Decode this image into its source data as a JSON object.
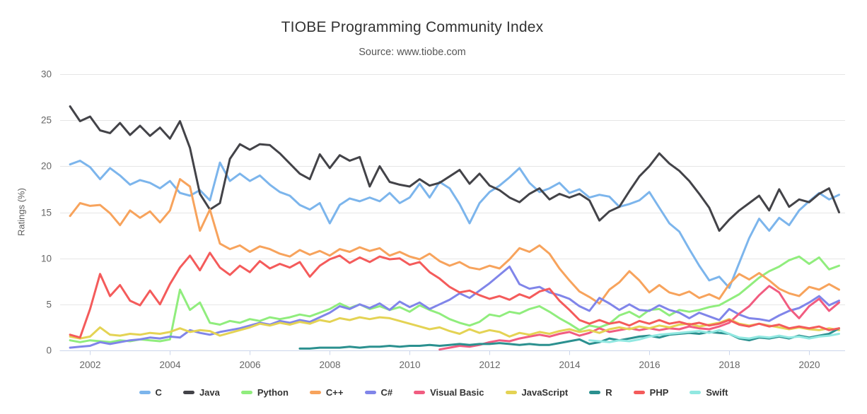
{
  "header": {
    "title": "TIOBE Programming Community Index",
    "subtitle": "Source: www.tiobe.com"
  },
  "colors": {
    "grid": "#e6e6e6",
    "axis": "#ccd6eb",
    "tick_label": "#666666",
    "title_text": "#333333",
    "subtitle_text": "#555555",
    "legend_label": "#333333"
  },
  "chart_data": {
    "type": "line",
    "title": "TIOBE Programming Community Index",
    "subtitle": "Source: www.tiobe.com",
    "xlabel": "",
    "ylabel": "Ratings (%)",
    "ylim": [
      0,
      30
    ],
    "xlim": [
      2001.25,
      2020.9
    ],
    "y_ticks": [
      0,
      5,
      10,
      15,
      20,
      25,
      30
    ],
    "x_ticks": [
      2002,
      2004,
      2006,
      2008,
      2010,
      2012,
      2014,
      2016,
      2018,
      2020
    ],
    "grid": "horizontal",
    "legend_position": "bottom",
    "x_step": 0.25,
    "x_unit": "decimal-year, quarterly samples",
    "series": [
      {
        "name": "C",
        "color": "#7cb5ec",
        "start": 2001.5,
        "values": [
          20.2,
          20.6,
          19.9,
          18.6,
          19.8,
          19.0,
          18.0,
          18.5,
          18.2,
          17.6,
          18.4,
          17.1,
          16.8,
          17.4,
          16.3,
          20.4,
          18.4,
          19.2,
          18.4,
          19.0,
          18.0,
          17.2,
          16.8,
          15.8,
          15.3,
          16.0,
          13.8,
          15.8,
          16.5,
          16.2,
          16.6,
          16.2,
          17.1,
          16.0,
          16.6,
          18.1,
          16.6,
          18.3,
          17.6,
          15.9,
          13.8,
          16.0,
          17.2,
          17.9,
          18.8,
          19.8,
          18.2,
          17.2,
          17.6,
          18.2,
          17.1,
          17.5,
          16.6,
          16.9,
          16.7,
          15.6,
          15.9,
          16.3,
          17.2,
          15.5,
          13.8,
          12.9,
          11.0,
          9.2,
          7.6,
          8.0,
          6.8,
          9.5,
          12.2,
          14.3,
          13.0,
          14.4,
          13.6,
          15.2,
          16.2,
          17.1,
          16.4,
          16.9
        ]
      },
      {
        "name": "Java",
        "color": "#434348",
        "start": 2001.5,
        "values": [
          26.5,
          24.9,
          25.4,
          23.9,
          23.6,
          24.7,
          23.4,
          24.4,
          23.3,
          24.2,
          23.0,
          24.9,
          22.0,
          17.0,
          15.3,
          16.0,
          20.8,
          22.4,
          21.8,
          22.4,
          22.3,
          21.4,
          20.3,
          19.2,
          18.6,
          21.3,
          19.8,
          21.2,
          20.6,
          21.0,
          17.8,
          20.0,
          18.3,
          18.0,
          17.8,
          18.6,
          17.9,
          18.2,
          18.9,
          19.6,
          18.1,
          19.2,
          17.9,
          17.4,
          16.6,
          16.1,
          17.0,
          17.6,
          16.4,
          17.0,
          16.6,
          17.0,
          16.3,
          14.1,
          15.1,
          15.6,
          17.3,
          18.9,
          20.0,
          21.4,
          20.3,
          19.5,
          18.4,
          17.0,
          15.5,
          13.0,
          14.2,
          15.2,
          16.0,
          16.8,
          15.2,
          17.5,
          15.6,
          16.4,
          16.1,
          17.0,
          17.6,
          15.0
        ]
      },
      {
        "name": "Python",
        "color": "#90ed7d",
        "start": 2001.5,
        "values": [
          1.1,
          0.9,
          1.1,
          1.0,
          0.9,
          1.1,
          1.0,
          1.2,
          1.1,
          1.0,
          1.2,
          6.6,
          4.4,
          5.2,
          3.0,
          2.8,
          3.2,
          3.0,
          3.4,
          3.2,
          3.6,
          3.4,
          3.6,
          3.9,
          3.7,
          4.1,
          4.5,
          5.1,
          4.6,
          5.0,
          4.5,
          4.8,
          4.4,
          4.7,
          4.2,
          4.9,
          4.4,
          4.0,
          3.4,
          3.0,
          2.7,
          3.1,
          3.9,
          3.7,
          4.2,
          4.0,
          4.5,
          4.8,
          4.2,
          3.5,
          2.9,
          2.2,
          2.7,
          2.5,
          2.9,
          3.8,
          4.2,
          3.6,
          4.4,
          4.5,
          3.8,
          4.4,
          4.2,
          4.4,
          4.7,
          4.9,
          5.5,
          6.1,
          7.0,
          7.9,
          8.6,
          9.1,
          9.8,
          10.2,
          9.4,
          10.1,
          8.8,
          9.2
        ]
      },
      {
        "name": "C++",
        "color": "#f7a35c",
        "start": 2001.5,
        "values": [
          14.6,
          16.0,
          15.7,
          15.8,
          14.9,
          13.6,
          15.2,
          14.4,
          15.1,
          13.9,
          15.2,
          18.6,
          17.8,
          13.0,
          15.3,
          11.6,
          11.0,
          11.4,
          10.7,
          11.3,
          11.0,
          10.5,
          10.2,
          10.9,
          10.4,
          10.8,
          10.3,
          11.0,
          10.7,
          11.2,
          10.8,
          11.1,
          10.3,
          10.7,
          10.2,
          9.9,
          10.5,
          9.7,
          9.2,
          9.6,
          9.0,
          8.8,
          9.2,
          8.9,
          9.9,
          11.1,
          10.7,
          11.4,
          10.5,
          8.9,
          7.6,
          6.4,
          5.8,
          5.1,
          6.6,
          7.4,
          8.6,
          7.6,
          6.3,
          7.1,
          6.3,
          6.0,
          6.4,
          5.7,
          6.1,
          5.6,
          7.2,
          8.3,
          7.7,
          8.4,
          7.6,
          6.7,
          6.2,
          5.9,
          6.9,
          6.6,
          7.2,
          6.6
        ]
      },
      {
        "name": "C#",
        "color": "#8085e9",
        "start": 2001.5,
        "values": [
          0.3,
          0.4,
          0.5,
          0.9,
          0.7,
          0.9,
          1.1,
          1.2,
          1.4,
          1.3,
          1.5,
          1.4,
          2.2,
          1.9,
          1.7,
          2.0,
          2.2,
          2.4,
          2.7,
          3.0,
          2.8,
          3.2,
          3.0,
          3.3,
          3.1,
          3.6,
          4.1,
          4.8,
          4.5,
          5.0,
          4.6,
          5.1,
          4.4,
          5.3,
          4.7,
          5.2,
          4.5,
          5.0,
          5.5,
          6.2,
          5.7,
          6.5,
          7.3,
          8.2,
          9.1,
          7.2,
          6.7,
          6.9,
          6.3,
          6.0,
          5.6,
          4.8,
          4.3,
          5.7,
          5.1,
          4.4,
          5.0,
          4.4,
          4.3,
          4.9,
          4.4,
          4.1,
          3.5,
          4.1,
          3.7,
          3.3,
          4.5,
          3.9,
          3.5,
          3.4,
          3.2,
          3.8,
          4.3,
          4.6,
          5.2,
          5.9,
          4.9,
          5.4
        ]
      },
      {
        "name": "Visual Basic",
        "color": "#f15c80",
        "start": 2010.75,
        "values": [
          0.1,
          0.3,
          0.5,
          0.4,
          0.6,
          0.9,
          1.1,
          1.0,
          1.3,
          1.5,
          1.7,
          1.5,
          1.8,
          2.0,
          1.6,
          1.9,
          2.4,
          2.0,
          2.2,
          2.4,
          2.2,
          2.4,
          2.2,
          2.4,
          2.3,
          2.6,
          2.4,
          2.3,
          2.6,
          3.0,
          4.0,
          4.8,
          6.0,
          7.0,
          6.3,
          4.6,
          3.5,
          4.8,
          5.6,
          4.3,
          5.2
        ]
      },
      {
        "name": "JavaScript",
        "color": "#e4d354",
        "start": 2001.5,
        "values": [
          1.5,
          1.3,
          1.5,
          2.5,
          1.7,
          1.6,
          1.8,
          1.7,
          1.9,
          1.8,
          2.0,
          2.4,
          2.0,
          2.2,
          2.1,
          1.6,
          1.9,
          2.2,
          2.5,
          2.9,
          2.7,
          3.0,
          2.8,
          3.1,
          2.9,
          3.3,
          3.1,
          3.5,
          3.3,
          3.6,
          3.4,
          3.6,
          3.5,
          3.2,
          2.9,
          2.6,
          2.3,
          2.5,
          2.1,
          1.8,
          2.3,
          1.9,
          2.2,
          2.0,
          1.5,
          1.9,
          1.7,
          2.0,
          1.8,
          2.1,
          2.3,
          2.0,
          2.2,
          1.9,
          2.3,
          2.5,
          2.3,
          2.6,
          2.4,
          2.7,
          2.5,
          2.8,
          2.9,
          2.6,
          2.8,
          3.0,
          3.4,
          2.9,
          2.7,
          2.9,
          2.7,
          2.5,
          2.3,
          2.5,
          2.3,
          2.2,
          2.4,
          2.2
        ]
      },
      {
        "name": "R",
        "color": "#2b908f",
        "start": 2007.25,
        "values": [
          0.2,
          0.2,
          0.3,
          0.3,
          0.3,
          0.4,
          0.3,
          0.4,
          0.4,
          0.5,
          0.4,
          0.5,
          0.5,
          0.6,
          0.5,
          0.6,
          0.7,
          0.6,
          0.7,
          0.7,
          0.8,
          0.7,
          0.6,
          0.7,
          0.6,
          0.6,
          0.8,
          1.0,
          1.2,
          0.7,
          0.9,
          1.3,
          1.1,
          1.3,
          1.5,
          1.6,
          1.4,
          1.7,
          1.8,
          1.9,
          1.8,
          2.0,
          1.9,
          1.8,
          1.3,
          1.1,
          1.4,
          1.3,
          1.5,
          1.3,
          1.6,
          1.4,
          1.6,
          1.8,
          2.4
        ]
      },
      {
        "name": "PHP",
        "color": "#f45b5b",
        "start": 2001.5,
        "values": [
          1.7,
          1.4,
          4.5,
          8.3,
          5.9,
          7.1,
          5.4,
          4.9,
          6.5,
          5.0,
          7.2,
          9.0,
          10.3,
          8.7,
          10.6,
          9.0,
          8.2,
          9.2,
          8.5,
          9.7,
          8.9,
          9.4,
          9.0,
          9.6,
          8.0,
          9.2,
          9.9,
          10.3,
          9.5,
          10.1,
          9.6,
          10.2,
          9.9,
          10.0,
          9.3,
          9.6,
          8.5,
          7.8,
          6.9,
          6.3,
          6.5,
          6.0,
          5.6,
          5.9,
          5.5,
          6.1,
          5.7,
          6.4,
          6.7,
          5.4,
          4.4,
          3.3,
          2.9,
          3.3,
          2.9,
          3.1,
          2.7,
          3.2,
          2.9,
          3.3,
          2.9,
          3.1,
          2.8,
          3.0,
          2.7,
          2.9,
          3.3,
          2.8,
          2.6,
          2.9,
          2.6,
          2.8,
          2.4,
          2.6,
          2.4,
          2.6,
          2.2,
          2.4
        ]
      },
      {
        "name": "Swift",
        "color": "#91e8e1",
        "start": 2014.5,
        "values": [
          1.1,
          1.0,
          0.9,
          1.1,
          1.0,
          1.2,
          1.5,
          1.7,
          1.8,
          1.9,
          2.0,
          2.1,
          1.9,
          2.2,
          1.8,
          1.4,
          1.3,
          1.5,
          1.4,
          1.6,
          1.4,
          1.5,
          1.3,
          1.5,
          1.6,
          1.8
        ]
      }
    ]
  }
}
